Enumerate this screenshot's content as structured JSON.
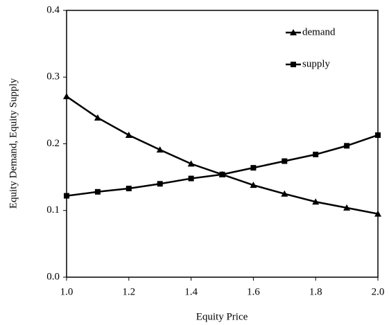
{
  "chart_data": {
    "type": "line",
    "xlabel": "Equity Price",
    "ylabel": "Equity Demand, Equity Supply",
    "x": [
      1.0,
      1.1,
      1.2,
      1.3,
      1.4,
      1.5,
      1.6,
      1.7,
      1.8,
      1.9,
      2.0
    ],
    "series": [
      {
        "name": "demand",
        "color": "#000000",
        "marker": "triangle",
        "values": [
          0.271,
          0.239,
          0.213,
          0.191,
          0.17,
          0.154,
          0.138,
          0.125,
          0.113,
          0.104,
          0.095
        ]
      },
      {
        "name": "supply",
        "color": "#000000",
        "marker": "square",
        "values": [
          0.122,
          0.128,
          0.133,
          0.14,
          0.148,
          0.154,
          0.164,
          0.174,
          0.184,
          0.197,
          0.213
        ]
      }
    ],
    "xlim": [
      1,
      2
    ],
    "xticks": [
      {
        "value": 1,
        "label": "1.0"
      },
      1.2,
      1.4,
      1.6,
      1.8,
      {
        "value": 2,
        "label": "2.0"
      }
    ],
    "ylim": [
      0,
      0.4
    ],
    "yticks": [
      {
        "value": 0,
        "label": "0.0"
      },
      0.1,
      0.2,
      0.3,
      0.4
    ],
    "grid": false,
    "legend": "upper right"
  }
}
